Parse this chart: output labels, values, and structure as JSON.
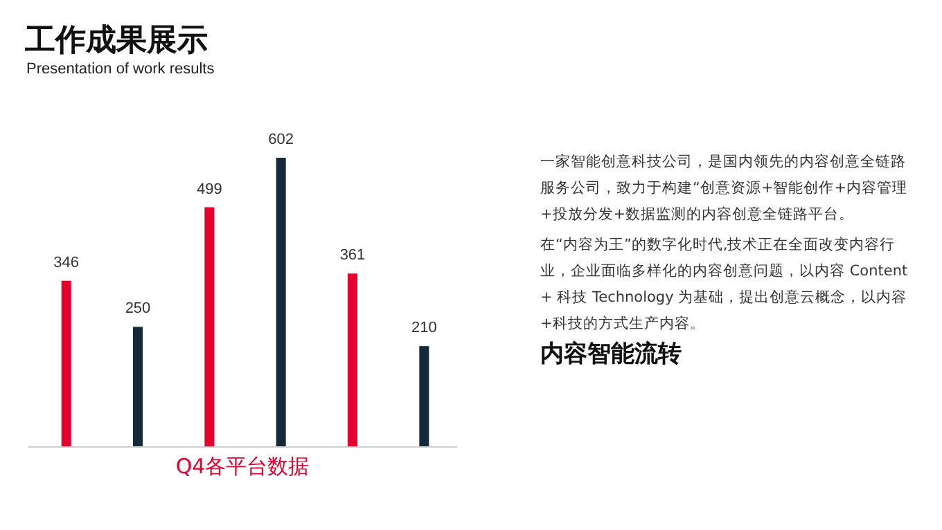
{
  "chart_data": {
    "type": "bar",
    "title": "工作成果展示",
    "subtitle": "Presentation of work results",
    "xlabel": "Q4各平台数据",
    "categories": [
      null,
      null,
      null,
      null,
      null,
      null
    ],
    "values": [
      346,
      250,
      499,
      602,
      361,
      210
    ],
    "colors": [
      "#e5002d",
      "#132a3a",
      "#e5002d",
      "#132a3a",
      "#e5002d",
      "#132a3a"
    ],
    "data_labels": true,
    "annotations": [
      "一家智能创意科技公司，是国内领先的内容创意全链路服务公司，致力于构建“创意资源+智能创作+内容管理+投放分发+数据监测的内容创意全链路平台。",
      "在“内容为王”的数字化时代,技术正在全面改变内容行业，企业面临多样化的内容创意问题，以内容 Content + 科技 Technology 为基础，提出创意云概念，以内容+科技的方式生产内容。",
      "内容智能流转"
    ]
  }
}
